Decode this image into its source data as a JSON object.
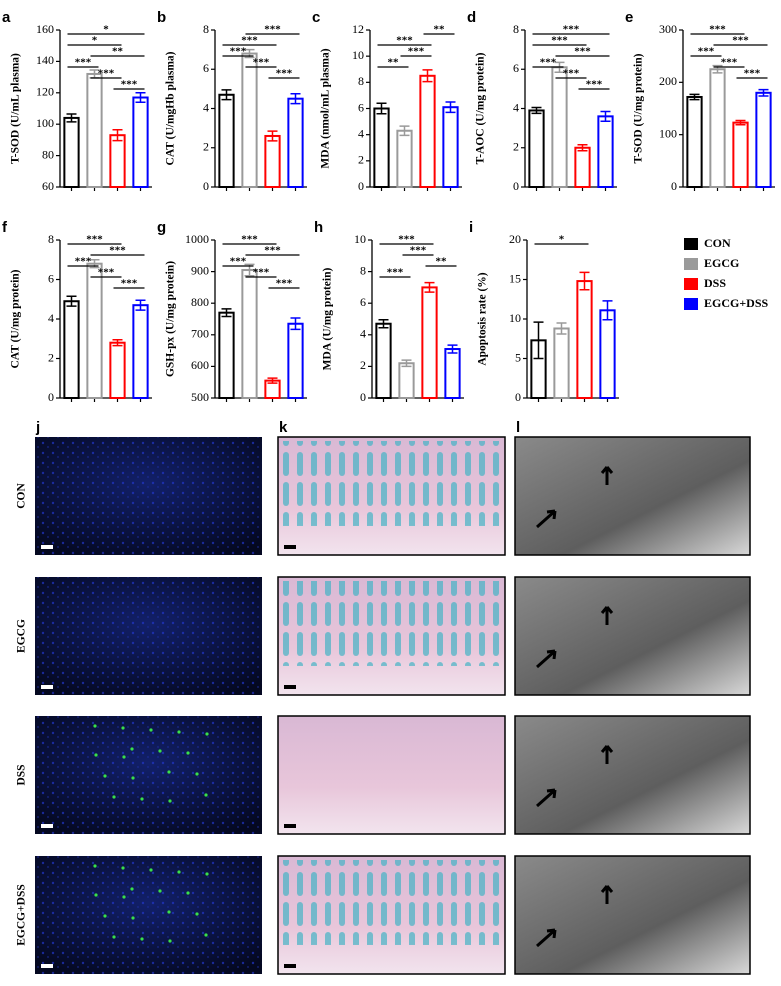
{
  "chart_data": [
    {
      "type": "bar",
      "panel": "a",
      "ylabel": "T-SOD (U/mL plasma)",
      "ylim": [
        60,
        160
      ],
      "yticks": [
        60,
        80,
        100,
        120,
        140,
        160
      ],
      "values": [
        104,
        132,
        93,
        117
      ],
      "errors": [
        2.5,
        2.5,
        3.5,
        3
      ],
      "annotations": [
        {
          "text": "*",
          "groups": [
            0,
            3
          ]
        },
        {
          "text": "*",
          "groups": [
            0,
            2
          ]
        },
        {
          "text": "**",
          "groups": [
            1,
            3
          ]
        },
        {
          "text": "***",
          "groups": [
            0,
            1
          ]
        },
        {
          "text": "***",
          "groups": [
            1,
            2
          ]
        },
        {
          "text": "***",
          "groups": [
            2,
            3
          ]
        }
      ]
    },
    {
      "type": "bar",
      "panel": "b",
      "ylabel": "CAT (U/mgHb plasma)",
      "ylim": [
        0,
        8
      ],
      "yticks": [
        0,
        2,
        4,
        6,
        8
      ],
      "values": [
        4.7,
        6.8,
        2.6,
        4.5
      ],
      "errors": [
        0.25,
        0.2,
        0.25,
        0.25
      ],
      "annotations": [
        {
          "text": "***",
          "groups": [
            1,
            3
          ]
        },
        {
          "text": "***",
          "groups": [
            0,
            2
          ]
        },
        {
          "text": "***",
          "groups": [
            0,
            1
          ]
        },
        {
          "text": "***",
          "groups": [
            1,
            2
          ]
        },
        {
          "text": "***",
          "groups": [
            2,
            3
          ]
        }
      ]
    },
    {
      "type": "bar",
      "panel": "c",
      "ylabel": "MDA (nmol/mL plasma)",
      "ylim": [
        0,
        12
      ],
      "yticks": [
        0,
        2,
        4,
        6,
        8,
        10,
        12
      ],
      "values": [
        6.0,
        4.3,
        8.5,
        6.1
      ],
      "errors": [
        0.4,
        0.35,
        0.45,
        0.4
      ],
      "annotations": [
        {
          "text": "**",
          "groups": [
            2,
            3
          ]
        },
        {
          "text": "***",
          "groups": [
            0,
            2
          ]
        },
        {
          "text": "***",
          "groups": [
            1,
            2
          ]
        },
        {
          "text": "**",
          "groups": [
            0,
            1
          ]
        }
      ]
    },
    {
      "type": "bar",
      "panel": "d",
      "ylabel": "T-AOC (U/mg protein)",
      "ylim": [
        0,
        8
      ],
      "yticks": [
        0,
        2,
        4,
        6,
        8
      ],
      "values": [
        3.9,
        6.1,
        2.0,
        3.6
      ],
      "errors": [
        0.15,
        0.25,
        0.15,
        0.25
      ],
      "annotations": [
        {
          "text": "***",
          "groups": [
            0,
            3
          ]
        },
        {
          "text": "***",
          "groups": [
            0,
            2
          ]
        },
        {
          "text": "***",
          "groups": [
            1,
            3
          ]
        },
        {
          "text": "***",
          "groups": [
            0,
            1
          ]
        },
        {
          "text": "***",
          "groups": [
            1,
            2
          ]
        },
        {
          "text": "***",
          "groups": [
            2,
            3
          ]
        }
      ]
    },
    {
      "type": "bar",
      "panel": "e",
      "ylabel": "T-SOD (U/mg protein)",
      "ylim": [
        0,
        300
      ],
      "yticks": [
        0,
        100,
        200,
        300
      ],
      "values": [
        172,
        225,
        123,
        180
      ],
      "errors": [
        5,
        7,
        4,
        6
      ],
      "annotations": [
        {
          "text": "***",
          "groups": [
            0,
            2
          ]
        },
        {
          "text": "***",
          "groups": [
            1,
            3
          ]
        },
        {
          "text": "***",
          "groups": [
            0,
            1
          ]
        },
        {
          "text": "***",
          "groups": [
            1,
            2
          ]
        },
        {
          "text": "***",
          "groups": [
            2,
            3
          ]
        }
      ]
    },
    {
      "type": "bar",
      "panel": "f",
      "ylabel": "CAT (U/mg protein)",
      "ylim": [
        0,
        8
      ],
      "yticks": [
        0,
        2,
        4,
        6,
        8
      ],
      "values": [
        4.9,
        6.8,
        2.8,
        4.7
      ],
      "errors": [
        0.25,
        0.2,
        0.15,
        0.25
      ],
      "annotations": [
        {
          "text": "***",
          "groups": [
            0,
            2
          ]
        },
        {
          "text": "***",
          "groups": [
            1,
            3
          ]
        },
        {
          "text": "***",
          "groups": [
            0,
            1
          ]
        },
        {
          "text": "***",
          "groups": [
            1,
            2
          ]
        },
        {
          "text": "***",
          "groups": [
            2,
            3
          ]
        }
      ]
    },
    {
      "type": "bar",
      "panel": "g",
      "ylabel": "GSH-px (U/mg protein)",
      "ylim": [
        500,
        1000
      ],
      "yticks": [
        500,
        600,
        700,
        800,
        900,
        1000
      ],
      "values": [
        770,
        905,
        555,
        735
      ],
      "errors": [
        12,
        18,
        8,
        18
      ],
      "annotations": [
        {
          "text": "***",
          "groups": [
            0,
            2
          ]
        },
        {
          "text": "***",
          "groups": [
            1,
            3
          ]
        },
        {
          "text": "***",
          "groups": [
            0,
            1
          ]
        },
        {
          "text": "***",
          "groups": [
            1,
            2
          ]
        },
        {
          "text": "***",
          "groups": [
            2,
            3
          ]
        }
      ]
    },
    {
      "type": "bar",
      "panel": "h",
      "ylabel": "MDA (U/mg protein)",
      "ylim": [
        0,
        10
      ],
      "yticks": [
        0,
        2,
        4,
        6,
        8,
        10
      ],
      "values": [
        4.7,
        2.2,
        7.0,
        3.1
      ],
      "errors": [
        0.25,
        0.2,
        0.3,
        0.25
      ],
      "annotations": [
        {
          "text": "***",
          "groups": [
            0,
            2
          ]
        },
        {
          "text": "***",
          "groups": [
            1,
            2
          ]
        },
        {
          "text": "**",
          "groups": [
            2,
            3
          ]
        },
        {
          "text": "***",
          "groups": [
            0,
            1
          ]
        }
      ]
    },
    {
      "type": "bar",
      "panel": "i",
      "ylabel": "Apoptosis rate (%)",
      "ylim": [
        0,
        20
      ],
      "yticks": [
        0,
        5,
        10,
        15,
        20
      ],
      "values": [
        7.3,
        8.8,
        14.8,
        11.1
      ],
      "errors": [
        2.3,
        0.7,
        1.1,
        1.2
      ],
      "annotations": [
        {
          "text": "*",
          "groups": [
            0,
            2
          ]
        }
      ]
    }
  ],
  "legend": [
    {
      "name": "CON",
      "color": "#000000"
    },
    {
      "name": "EGCG",
      "color": "#9a9a9a"
    },
    {
      "name": "DSS",
      "color": "#ff0000"
    },
    {
      "name": "EGCG+DSS",
      "color": "#0000ff"
    }
  ],
  "images": {
    "columns": [
      {
        "panel": "j"
      },
      {
        "panel": "k"
      },
      {
        "panel": "l"
      }
    ],
    "rows": [
      "CON",
      "EGCG",
      "DSS",
      "EGCG+DSS"
    ]
  }
}
